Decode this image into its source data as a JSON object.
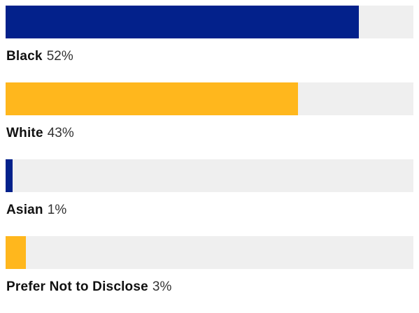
{
  "chart_data": {
    "type": "bar",
    "orientation": "horizontal",
    "categories": [
      "Black",
      "White",
      "Asian",
      "Prefer Not to Disclose"
    ],
    "values": [
      52,
      43,
      1,
      3
    ],
    "value_labels": [
      "52%",
      "43%",
      "1%",
      "3%"
    ],
    "value_unit": "%",
    "colors": [
      "#03218b",
      "#ffb71d",
      "#03218b",
      "#ffb71d"
    ],
    "track_color": "#efefef",
    "xlim": [
      0,
      100
    ],
    "title": "",
    "xlabel": "",
    "ylabel": "",
    "grid": false,
    "legend": "none"
  }
}
